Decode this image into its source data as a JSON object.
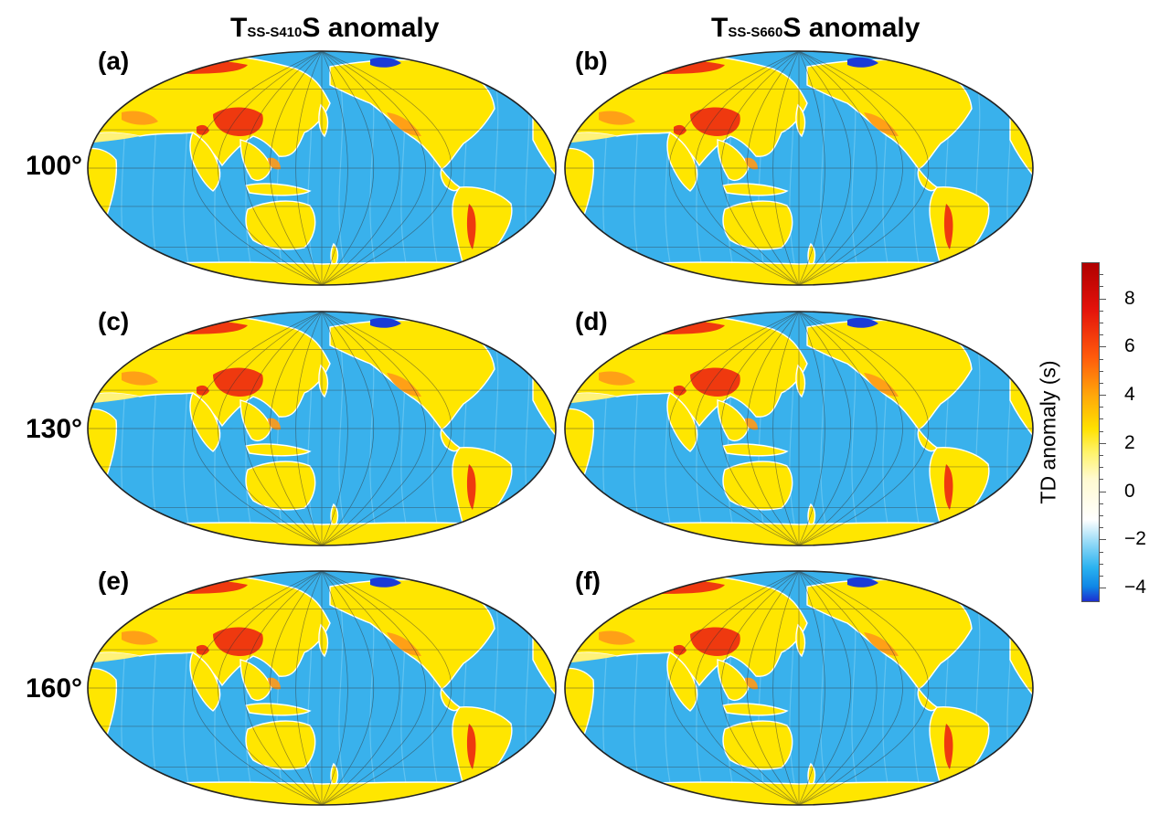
{
  "titles": {
    "left": {
      "main": "T",
      "sub": "SS-S410",
      "end": "S anomaly"
    },
    "right": {
      "main": "T",
      "sub": "SS-S660",
      "end": "S anomaly"
    }
  },
  "rows": [
    "100°",
    "130°",
    "160°"
  ],
  "panels": [
    {
      "label": "(a)"
    },
    {
      "label": "(b)"
    },
    {
      "label": "(c)"
    },
    {
      "label": "(d)"
    },
    {
      "label": "(e)"
    },
    {
      "label": "(f)"
    }
  ],
  "colorbar": {
    "title": "TD anomaly (s)",
    "min": -4.6,
    "max": 9.5,
    "tick_values": [
      8,
      6,
      4,
      2,
      0,
      -2,
      -4
    ],
    "tick_labels": [
      "8",
      "6",
      "4",
      "2",
      "0",
      "−2",
      "−4"
    ],
    "stops": [
      {
        "v": -4.6,
        "color": "#1d2fd0"
      },
      {
        "v": -4.0,
        "color": "#0f86e6"
      },
      {
        "v": -3.2,
        "color": "#2ab2f0"
      },
      {
        "v": -2.2,
        "color": "#8fd8f6"
      },
      {
        "v": -1.2,
        "color": "#ffffff"
      },
      {
        "v": 0.5,
        "color": "#fffad0"
      },
      {
        "v": 1.6,
        "color": "#fff36b"
      },
      {
        "v": 2.6,
        "color": "#ffe000"
      },
      {
        "v": 4.0,
        "color": "#ffa60a"
      },
      {
        "v": 5.6,
        "color": "#ff5a0c"
      },
      {
        "v": 7.6,
        "color": "#e3120b"
      },
      {
        "v": 9.5,
        "color": "#b00000"
      }
    ]
  },
  "colors": {
    "ocean": "#39b1ec",
    "land": "#ffe600",
    "anomaly_high": "#ee2a10",
    "anomaly_mid": "#ff9a18",
    "anomaly_low": "#1a3bd6",
    "coast": "#ffffff",
    "grid": "#333333"
  }
}
